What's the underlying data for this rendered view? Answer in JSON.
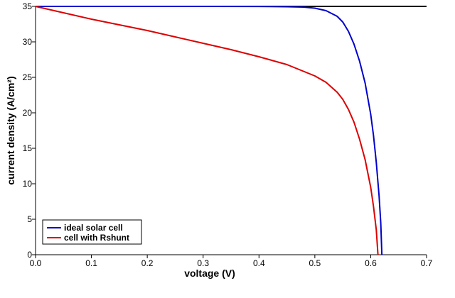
{
  "chart_data": {
    "type": "line",
    "title": "",
    "xlabel": "voltage (V)",
    "ylabel": "current density (A/cm²)",
    "xlim": [
      0,
      0.7
    ],
    "ylim": [
      0,
      35
    ],
    "x_ticks": [
      0.0,
      0.1,
      0.2,
      0.3,
      0.4,
      0.5,
      0.6,
      0.7
    ],
    "x_tick_labels": [
      "0.0",
      "0.1",
      "0.2",
      "0.3",
      "0.4",
      "0.5",
      "0.6",
      "0.7"
    ],
    "y_ticks": [
      0,
      5,
      10,
      15,
      20,
      25,
      30,
      35
    ],
    "y_tick_labels": [
      "0",
      "5",
      "10",
      "15",
      "20",
      "25",
      "30",
      "35"
    ],
    "grid": false,
    "legend_position": "bottom-left",
    "series": [
      {
        "name": "ideal solar cell",
        "color": "#0000cc",
        "x": [
          0.0,
          0.1,
          0.2,
          0.3,
          0.4,
          0.45,
          0.48,
          0.5,
          0.52,
          0.54,
          0.55,
          0.56,
          0.57,
          0.58,
          0.59,
          0.6,
          0.605,
          0.61,
          0.615,
          0.618,
          0.62
        ],
        "y": [
          35.0,
          35.0,
          35.0,
          35.0,
          34.99,
          34.95,
          34.9,
          34.75,
          34.4,
          33.6,
          32.8,
          31.5,
          29.7,
          27.3,
          24.2,
          19.8,
          16.8,
          13.0,
          8.3,
          4.5,
          0.0
        ]
      },
      {
        "name": "cell with Rshunt",
        "color": "#dd0000",
        "x": [
          0.0,
          0.05,
          0.1,
          0.15,
          0.2,
          0.25,
          0.3,
          0.35,
          0.4,
          0.45,
          0.5,
          0.52,
          0.54,
          0.55,
          0.56,
          0.57,
          0.58,
          0.59,
          0.6,
          0.605,
          0.61,
          0.613
        ],
        "y": [
          35.0,
          34.1,
          33.2,
          32.4,
          31.6,
          30.7,
          29.8,
          28.9,
          27.9,
          26.8,
          25.2,
          24.3,
          22.9,
          21.9,
          20.5,
          18.7,
          16.3,
          13.4,
          9.5,
          6.8,
          3.5,
          0.0
        ]
      }
    ]
  }
}
